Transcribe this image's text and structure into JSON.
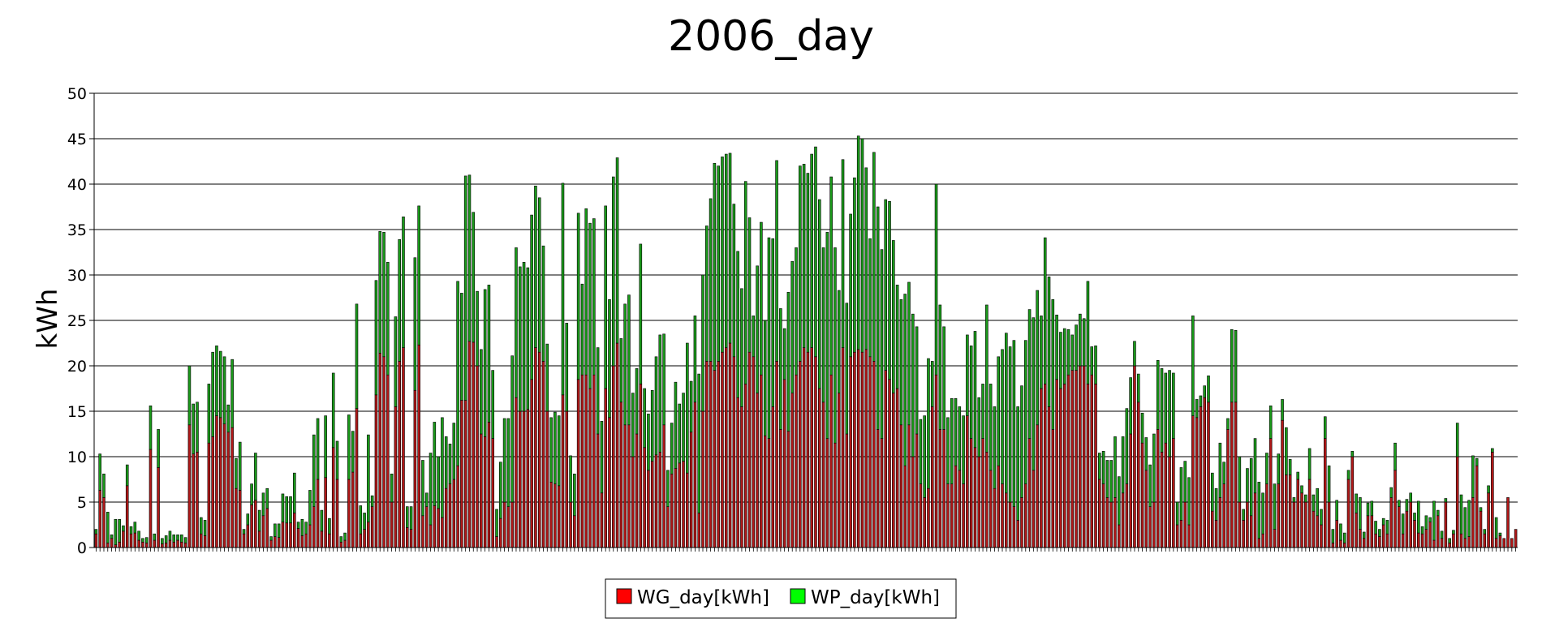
{
  "chart_data": {
    "type": "bar",
    "stacked": true,
    "title": "2006_day",
    "xlabel": "",
    "ylabel": "kWh",
    "ylim": [
      0,
      50
    ],
    "yticks": [
      0,
      5,
      10,
      15,
      20,
      25,
      30,
      35,
      40,
      45,
      50
    ],
    "grid": "horizontal",
    "legend_position": "bottom-center",
    "x_days": "1-365",
    "series": [
      {
        "name": "WG_day[kWh]",
        "color": "#b01818",
        "values": [
          1.5,
          6.3,
          5.5,
          0.5,
          1,
          0.3,
          0.6,
          1.8,
          6.8,
          1.5,
          1.6,
          0.8,
          0.6,
          0.5,
          10.8,
          0.8,
          8.8,
          0.4,
          0.5,
          0.8,
          0.6,
          0.8,
          0.6,
          0.5,
          13.5,
          10.3,
          10.5,
          1.5,
          1.3,
          11.5,
          12.2,
          14.5,
          14.3,
          13.6,
          12.7,
          13.2,
          6.5,
          6.3,
          1.5,
          2.5,
          4.7,
          5.2,
          1.8,
          3.5,
          4.3,
          0.8,
          1.2,
          1.1,
          2.8,
          2.7,
          2.7,
          3.8,
          2.1,
          1.3,
          1.5,
          2.5,
          4.5,
          7.5,
          1.8,
          7.7,
          1.5,
          11,
          7.5,
          0.6,
          0.8,
          7.5,
          8.3,
          15.3,
          1.5,
          2,
          2.8,
          4.5,
          16.8,
          21.4,
          21,
          19,
          5,
          15.5,
          20.5,
          22,
          2.2,
          2,
          17.3,
          22.3,
          3.5,
          4.5,
          2.5,
          4.6,
          4.3,
          3.3,
          6.5,
          7,
          7.5,
          9,
          16.2,
          16.2,
          22.7,
          22.6,
          20,
          12.5,
          12.2,
          13.8,
          12,
          1.2,
          3.2,
          5,
          4.5,
          5,
          16.5,
          15,
          15,
          15.2,
          18.5,
          22,
          21.5,
          20.5,
          15,
          7.2,
          7,
          6.8,
          16.8,
          15,
          5,
          3.5,
          18.5,
          19,
          19,
          17.5,
          19,
          12.5,
          6,
          17.5,
          14.3,
          20,
          22.5,
          16,
          13.5,
          13.5,
          10,
          12.5,
          18,
          11,
          8.5,
          9.5,
          10.2,
          10.5,
          13.5,
          4.5,
          8.1,
          8.7,
          9.3,
          9.5,
          8.2,
          12.7,
          16,
          3.8,
          15,
          20.5,
          20.5,
          19.5,
          20.5,
          21.5,
          22,
          22.5,
          21,
          16.5,
          15.5,
          18,
          21.5,
          21,
          17,
          19,
          12.3,
          12,
          15.5,
          20.5,
          13,
          18.5,
          12.8,
          17,
          19,
          20.5,
          22,
          21.5,
          22,
          21,
          17.5,
          16,
          12,
          19,
          11.5,
          17,
          22,
          12.5,
          21,
          21.5,
          21.8,
          21.5,
          21.8,
          21,
          20.5,
          13,
          12,
          19.5,
          18.5,
          17,
          17.5,
          13.5,
          9,
          13.5,
          10,
          12.5,
          7,
          5.5,
          6.5,
          15.5,
          19,
          13,
          13,
          7,
          7,
          9,
          8.5,
          7,
          14.5,
          12,
          11,
          10,
          12,
          10.5,
          8.5,
          6.5,
          9,
          7,
          6,
          5,
          4.5,
          3,
          5.5,
          7,
          12,
          8.5,
          13.5,
          17.5,
          18,
          15.5,
          13,
          18.5,
          17.5,
          18,
          19,
          19.5,
          19.5,
          20,
          20,
          18,
          19,
          18,
          7.5,
          7,
          5.5,
          5,
          5.5,
          2.5,
          6,
          7,
          12.5,
          20,
          16,
          11.5,
          8.5,
          4.5,
          5,
          13,
          10.5,
          11.5,
          10,
          12,
          2.5,
          3,
          5,
          2.5,
          14.5,
          14.3,
          15.5,
          16.5,
          16,
          4,
          3,
          5.5,
          7,
          13,
          16,
          16,
          5,
          3,
          5,
          3.5,
          6,
          1,
          1.5,
          7,
          12,
          2,
          7,
          14,
          8,
          8,
          5,
          7.5,
          6,
          5,
          7.5,
          4,
          3.5,
          2.5,
          12,
          5,
          0.5,
          3,
          0.8,
          0.5,
          7.5,
          10,
          3.8,
          2,
          1,
          3.5,
          3.5,
          1.5,
          1.2,
          2.5,
          1.5,
          5.5,
          8.5,
          4.5,
          1.5,
          4,
          5,
          3,
          1.6,
          1.5,
          2,
          2.8,
          0.8,
          3.5,
          1,
          5,
          0.5,
          1.5,
          10,
          1.5,
          1,
          1.2,
          5.5,
          9,
          4,
          1.5,
          6,
          10.5,
          1,
          1.3,
          1,
          5.5,
          1,
          2
        ],
        "note_values": "bottom (red) segment heights, kWh"
      },
      {
        "name": "WP_day[kWh]",
        "color": "#1a9a1a",
        "values": [
          0.5,
          4,
          2.6,
          3.4,
          0.4,
          2.8,
          2.5,
          0.6,
          2.3,
          0.8,
          1.2,
          1,
          0.4,
          0.6,
          4.8,
          0.7,
          4.2,
          0.6,
          0.8,
          1,
          0.8,
          0.6,
          0.8,
          0.6,
          6.5,
          5.5,
          5.5,
          1.8,
          1.7,
          6.5,
          9.3,
          7.7,
          7.3,
          7.4,
          3,
          7.5,
          3.3,
          5.3,
          0.5,
          1.2,
          2.3,
          5.2,
          2.3,
          2.5,
          2.2,
          0.4,
          1.4,
          1.5,
          3.1,
          2.9,
          2.9,
          4.4,
          0.7,
          1.8,
          1.3,
          3.8,
          7.9,
          6.7,
          2.3,
          6.8,
          1.7,
          8.2,
          4.2,
          0.6,
          0.8,
          7.1,
          4.5,
          11.5,
          3.1,
          1.8,
          9.6,
          1.2,
          12.6,
          13.4,
          13.7,
          12.4,
          3.1,
          9.9,
          13.4,
          14.4,
          2.3,
          2.5,
          14.6,
          15.3,
          6.1,
          1.5,
          7.9,
          9.2,
          5.7,
          11,
          5.7,
          4.4,
          6.2,
          20.3,
          11.8,
          24.7,
          18.3,
          14.3,
          8.2,
          9.3,
          16.2,
          15.1,
          7.5,
          3,
          6.2,
          9.2,
          9.7,
          16.1,
          16.5,
          15.9,
          16.4,
          15.6,
          18.1,
          17.8,
          17,
          12.7,
          7.4,
          7.1,
          7.9,
          7.7,
          23.3,
          9.7,
          5.1,
          4.6,
          18.3,
          10,
          18.3,
          18.2,
          17.2,
          9.5,
          7.9,
          20.1,
          13,
          20.8,
          20.4,
          7,
          13.3,
          14.3,
          7,
          7.2,
          15.4,
          6.5,
          6.2,
          7.8,
          10.8,
          12.9,
          10,
          4,
          5.6,
          9.5,
          6.5,
          7.5,
          14.3,
          5.6,
          9.5,
          15.3,
          15,
          14.9,
          17.9,
          22.8,
          21.5,
          21.5,
          21.3,
          20.9,
          16.8,
          16.1,
          13,
          22.3,
          14.8,
          4.5,
          14,
          16.8,
          12.7,
          22.1,
          18.5,
          22.1,
          13.3,
          5.6,
          15.3,
          14.5,
          14,
          21.5,
          20.2,
          19.7,
          21.3,
          23.1,
          20.8,
          17,
          22.7,
          21.8,
          21.5,
          11.3,
          20.7,
          14.4,
          15.7,
          19.2,
          23.5,
          23.5,
          20,
          13,
          23,
          24.5,
          20.8,
          18.8,
          19.6,
          16.8,
          11.4,
          13.8,
          18.9,
          15.7,
          15.7,
          11.8,
          7.1,
          9,
          14.3,
          5,
          21,
          13.7,
          11.3,
          7.3,
          9.4,
          7.4,
          7,
          7.5,
          8.9,
          10.2,
          12.8,
          6.5,
          6,
          16.2,
          9.5,
          9,
          12,
          14.8,
          17.6,
          17.1,
          18.3,
          12.5,
          12.3,
          15.8,
          14.2,
          16.8,
          14.8,
          8,
          16.1,
          14.3,
          14.3,
          7.1,
          6.2,
          6.1,
          5,
          3.9,
          5,
          5.7,
          5.2,
          11.3,
          3.1,
          4.2,
          2.9,
          3.6,
          4.1,
          4.6,
          6.7,
          5.3,
          6.2,
          8.3,
          6.2,
          2.7,
          3.1,
          3.3,
          3.6,
          4.6,
          7.5,
          7.6,
          9.2,
          7.7,
          9.5,
          7.2,
          2.5,
          5.8,
          4.5,
          5.2,
          11,
          2,
          1.2,
          1.3,
          2.9,
          4.2,
          3.5,
          6,
          2.4,
          1.2,
          8,
          7.9,
          5,
          1.2,
          3.7,
          6.3,
          6,
          6.2,
          4.5,
          3.4,
          3.6,
          5,
          3.3,
          2.3,
          5.2,
          1.7,
          0.5,
          0.8,
          0.8,
          0.8,
          3.4,
          1.8,
          3,
          1.7,
          2.4,
          4,
          1.5,
          2.2,
          1.8,
          1.1,
          1,
          0.6,
          2.1,
          3.5,
          0.7,
          1.4,
          1.6,
          1.4,
          0.8,
          0.7,
          1.5,
          1.1,
          3,
          0.7,
          2.2,
          1.3,
          1,
          0.8,
          3.5,
          0.8,
          1.5,
          0.5,
          4.3,
          0.6,
          0.8,
          0.4,
          0.5,
          0.4,
          3.7,
          4.3,
          3.4,
          4,
          4.6,
          0.8,
          0.4,
          0.5,
          0.8,
          0.4,
          2.3,
          0.3
        ],
        "note_values": "top (green) segment heights, kWh"
      }
    ]
  },
  "legend": {
    "items": [
      "WG_day[kWh]",
      "WP_day[kWh]"
    ]
  }
}
